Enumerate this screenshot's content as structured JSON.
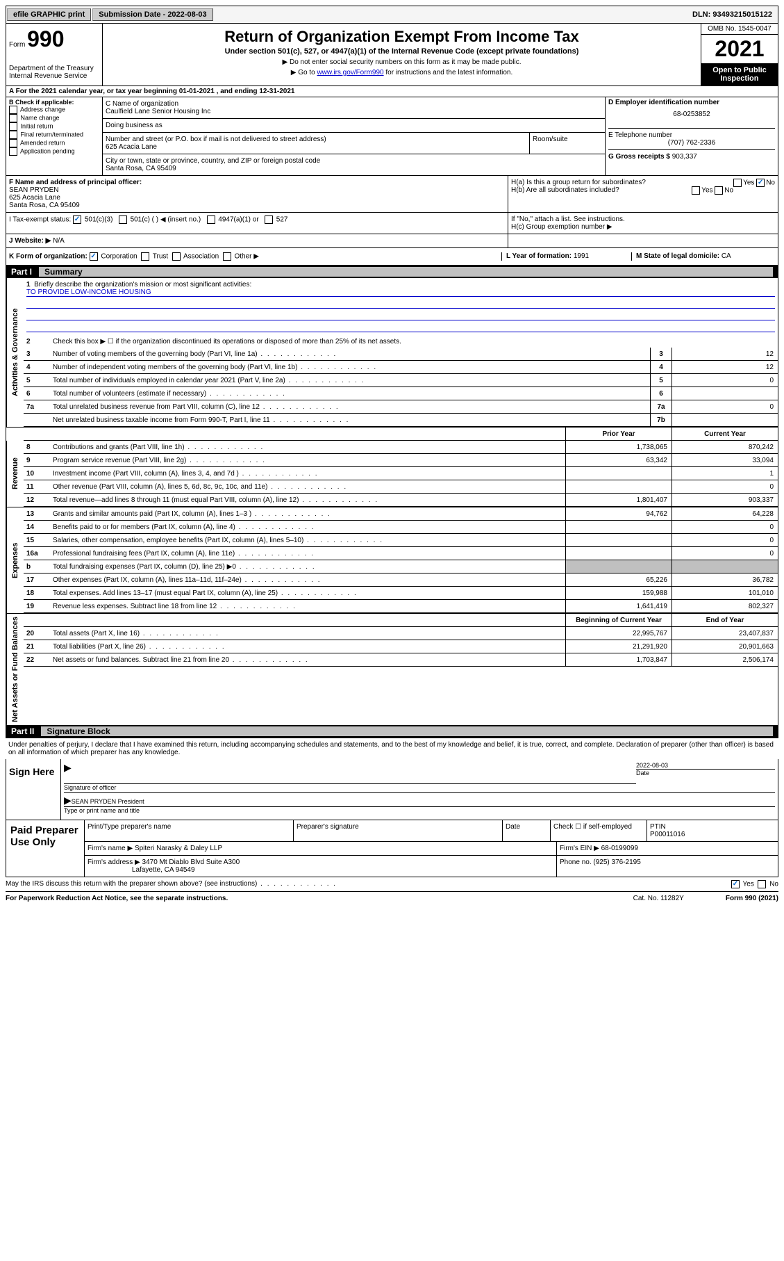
{
  "topbar": {
    "efile": "efile GRAPHIC print",
    "submission": "Submission Date - 2022-08-03",
    "dln": "DLN: 93493215015122"
  },
  "header": {
    "form_label": "Form",
    "form_num": "990",
    "dept": "Department of the Treasury",
    "irs": "Internal Revenue Service",
    "title": "Return of Organization Exempt From Income Tax",
    "subtitle": "Under section 501(c), 527, or 4947(a)(1) of the Internal Revenue Code (except private foundations)",
    "instr1": "▶ Do not enter social security numbers on this form as it may be made public.",
    "instr2a": "▶ Go to ",
    "instr2_link": "www.irs.gov/Form990",
    "instr2b": " for instructions and the latest information.",
    "omb": "OMB No. 1545-0047",
    "year": "2021",
    "open": "Open to Public Inspection"
  },
  "section_a": "A For the 2021 calendar year, or tax year beginning 01-01-2021   , and ending 12-31-2021",
  "section_b": {
    "label": "B Check if applicable:",
    "items": [
      "Address change",
      "Name change",
      "Initial return",
      "Final return/terminated",
      "Amended return",
      "Application pending"
    ]
  },
  "section_c": {
    "name_label": "C Name of organization",
    "name": "Caulfield Lane Senior Housing Inc",
    "dba_label": "Doing business as",
    "dba": "",
    "street_label": "Number and street (or P.O. box if mail is not delivered to street address)",
    "street": "625 Acacia Lane",
    "room_label": "Room/suite",
    "city_label": "City or town, state or province, country, and ZIP or foreign postal code",
    "city": "Santa Rosa, CA  95409"
  },
  "section_d": {
    "label": "D Employer identification number",
    "value": "68-0253852"
  },
  "section_e": {
    "label": "E Telephone number",
    "value": "(707) 762-2336"
  },
  "section_g": {
    "label": "G Gross receipts $",
    "value": "903,337"
  },
  "section_f": {
    "label": "F Name and address of principal officer:",
    "name": "SEAN PRYDEN",
    "addr1": "625 Acacia Lane",
    "addr2": "Santa Rosa, CA  95409"
  },
  "section_h": {
    "a": "H(a)  Is this a group return for subordinates?",
    "b": "H(b)  Are all subordinates included?",
    "b_note": "If \"No,\" attach a list. See instructions.",
    "c": "H(c)  Group exemption number ▶",
    "yes": "Yes",
    "no": "No"
  },
  "section_i": {
    "label": "I   Tax-exempt status:",
    "opts": [
      "501(c)(3)",
      "501(c) (  ) ◀ (insert no.)",
      "4947(a)(1) or",
      "527"
    ]
  },
  "section_j": {
    "label": "J   Website: ▶",
    "value": "N/A"
  },
  "section_k": {
    "label": "K Form of organization:",
    "opts": [
      "Corporation",
      "Trust",
      "Association",
      "Other ▶"
    ]
  },
  "section_l": {
    "label": "L Year of formation:",
    "value": "1991"
  },
  "section_m": {
    "label": "M State of legal domicile:",
    "value": "CA"
  },
  "part1": {
    "label": "Part I",
    "title": "Summary"
  },
  "summary": {
    "line1_label": "Briefly describe the organization's mission or most significant activities:",
    "line1_value": "TO PROVIDE LOW-INCOME HOUSING",
    "line2": "Check this box ▶ ☐  if the organization discontinued its operations or disposed of more than 25% of its net assets.",
    "gov_label": "Activities & Governance",
    "rev_label": "Revenue",
    "exp_label": "Expenses",
    "net_label": "Net Assets or Fund Balances",
    "prior_year": "Prior Year",
    "current_year": "Current Year",
    "begin_year": "Beginning of Current Year",
    "end_year": "End of Year",
    "lines_gov": [
      {
        "n": "3",
        "d": "Number of voting members of the governing body (Part VI, line 1a)",
        "box": "3",
        "v": "12"
      },
      {
        "n": "4",
        "d": "Number of independent voting members of the governing body (Part VI, line 1b)",
        "box": "4",
        "v": "12"
      },
      {
        "n": "5",
        "d": "Total number of individuals employed in calendar year 2021 (Part V, line 2a)",
        "box": "5",
        "v": "0"
      },
      {
        "n": "6",
        "d": "Total number of volunteers (estimate if necessary)",
        "box": "6",
        "v": ""
      },
      {
        "n": "7a",
        "d": "Total unrelated business revenue from Part VIII, column (C), line 12",
        "box": "7a",
        "v": "0"
      },
      {
        "n": "",
        "d": "Net unrelated business taxable income from Form 990-T, Part I, line 11",
        "box": "7b",
        "v": ""
      }
    ],
    "lines_rev": [
      {
        "n": "8",
        "d": "Contributions and grants (Part VIII, line 1h)",
        "p": "1,738,065",
        "c": "870,242"
      },
      {
        "n": "9",
        "d": "Program service revenue (Part VIII, line 2g)",
        "p": "63,342",
        "c": "33,094"
      },
      {
        "n": "10",
        "d": "Investment income (Part VIII, column (A), lines 3, 4, and 7d )",
        "p": "",
        "c": "1"
      },
      {
        "n": "11",
        "d": "Other revenue (Part VIII, column (A), lines 5, 6d, 8c, 9c, 10c, and 11e)",
        "p": "",
        "c": "0"
      },
      {
        "n": "12",
        "d": "Total revenue—add lines 8 through 11 (must equal Part VIII, column (A), line 12)",
        "p": "1,801,407",
        "c": "903,337"
      }
    ],
    "lines_exp": [
      {
        "n": "13",
        "d": "Grants and similar amounts paid (Part IX, column (A), lines 1–3 )",
        "p": "94,762",
        "c": "64,228"
      },
      {
        "n": "14",
        "d": "Benefits paid to or for members (Part IX, column (A), line 4)",
        "p": "",
        "c": "0"
      },
      {
        "n": "15",
        "d": "Salaries, other compensation, employee benefits (Part IX, column (A), lines 5–10)",
        "p": "",
        "c": "0"
      },
      {
        "n": "16a",
        "d": "Professional fundraising fees (Part IX, column (A), line 11e)",
        "p": "",
        "c": "0"
      },
      {
        "n": "b",
        "d": "Total fundraising expenses (Part IX, column (D), line 25) ▶0",
        "p": "shaded",
        "c": "shaded"
      },
      {
        "n": "17",
        "d": "Other expenses (Part IX, column (A), lines 11a–11d, 11f–24e)",
        "p": "65,226",
        "c": "36,782"
      },
      {
        "n": "18",
        "d": "Total expenses. Add lines 13–17 (must equal Part IX, column (A), line 25)",
        "p": "159,988",
        "c": "101,010"
      },
      {
        "n": "19",
        "d": "Revenue less expenses. Subtract line 18 from line 12",
        "p": "1,641,419",
        "c": "802,327"
      }
    ],
    "lines_net": [
      {
        "n": "20",
        "d": "Total assets (Part X, line 16)",
        "p": "22,995,767",
        "c": "23,407,837"
      },
      {
        "n": "21",
        "d": "Total liabilities (Part X, line 26)",
        "p": "21,291,920",
        "c": "20,901,663"
      },
      {
        "n": "22",
        "d": "Net assets or fund balances. Subtract line 21 from line 20",
        "p": "1,703,847",
        "c": "2,506,174"
      }
    ]
  },
  "part2": {
    "label": "Part II",
    "title": "Signature Block"
  },
  "penalties": "Under penalties of perjury, I declare that I have examined this return, including accompanying schedules and statements, and to the best of my knowledge and belief, it is true, correct, and complete. Declaration of preparer (other than officer) is based on all information of which preparer has any knowledge.",
  "sign": {
    "label": "Sign Here",
    "sig_label": "Signature of officer",
    "date_label": "Date",
    "date": "2022-08-03",
    "name": "SEAN PRYDEN President",
    "name_label": "Type or print name and title"
  },
  "prep": {
    "label": "Paid Preparer Use Only",
    "h1": "Print/Type preparer's name",
    "h2": "Preparer's signature",
    "h3": "Date",
    "h4a": "Check ☐ if self-employed",
    "h4b": "PTIN",
    "ptin": "P00011016",
    "firm_label": "Firm's name    ▶",
    "firm": "Spiteri Narasky & Daley LLP",
    "ein_label": "Firm's EIN ▶",
    "ein": "68-0199099",
    "addr_label": "Firm's address ▶",
    "addr1": "3470 Mt Diablo Blvd Suite A300",
    "addr2": "Lafayette, CA  94549",
    "phone_label": "Phone no.",
    "phone": "(925) 376-2195"
  },
  "footer": {
    "discuss": "May the IRS discuss this return with the preparer shown above? (see instructions)",
    "yes": "Yes",
    "no": "No",
    "paperwork": "For Paperwork Reduction Act Notice, see the separate instructions.",
    "cat": "Cat. No. 11282Y",
    "form": "Form 990 (2021)"
  }
}
